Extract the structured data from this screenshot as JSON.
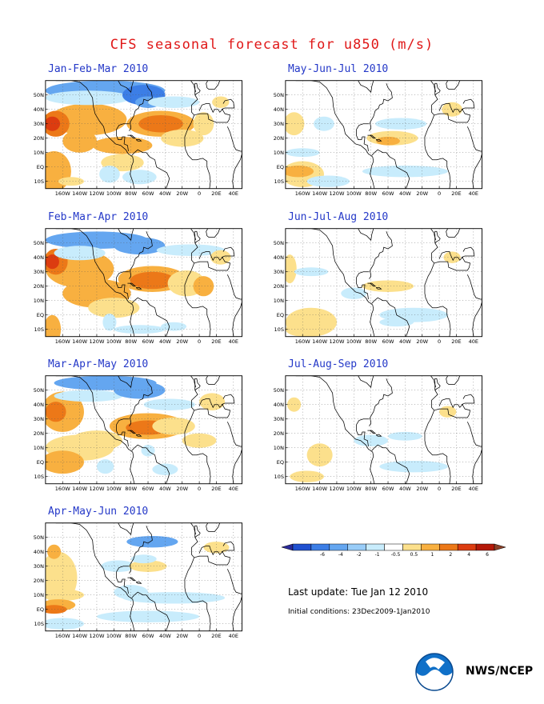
{
  "title": "CFS seasonal forecast for u850 (m/s)",
  "colors": {
    "title": "#e01818",
    "panel_title": "#2438c8",
    "scale": [
      "#2a2a9a",
      "#2050d0",
      "#3c7ee6",
      "#64a6f0",
      "#98ccf8",
      "#c8ecfc",
      "#ffffff",
      "#fce08c",
      "#f8b040",
      "#ec7818",
      "#dc3c10",
      "#b41808",
      "#8c4028"
    ]
  },
  "axes": {
    "lat_labels": [
      "50N",
      "40N",
      "30N",
      "20N",
      "10N",
      "EQ",
      "10S"
    ],
    "lon_labels": [
      "160W",
      "140W",
      "120W",
      "100W",
      "80W",
      "60W",
      "40W",
      "20W",
      "0",
      "20E",
      "40E"
    ]
  },
  "panels": [
    {
      "title": "Jan-Feb-Mar 2010"
    },
    {
      "title": "Feb-Mar-Apr 2010"
    },
    {
      "title": "Mar-Apr-May 2010"
    },
    {
      "title": "Apr-May-Jun 2010"
    },
    {
      "title": "May-Jun-Jul 2010"
    },
    {
      "title": "Jun-Jul-Aug 2010"
    },
    {
      "title": "Jul-Aug-Sep 2010"
    }
  ],
  "colorbar": {
    "labels": [
      "-6",
      "-4",
      "-2",
      "-1",
      "-0.5",
      "0.5",
      "1",
      "2",
      "4",
      "6"
    ]
  },
  "footer": {
    "last_update": "Last update: Tue Jan 12 2010",
    "initial_conditions": "Initial conditions: 23Dec2009-1Jan2010",
    "org": "NWS/NCEP",
    "logo_icon": "noaa-logo-icon"
  }
}
